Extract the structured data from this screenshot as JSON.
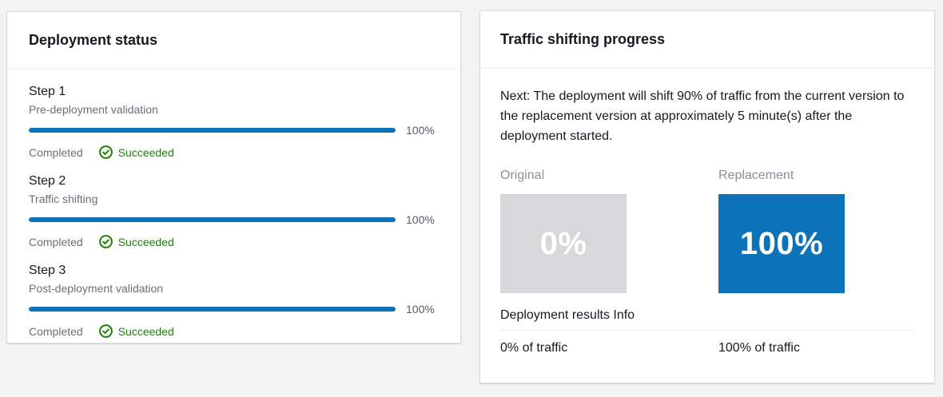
{
  "page": {
    "background": "#f2f3f3"
  },
  "colors": {
    "accent_blue": "#0d73b8",
    "success_green": "#1d8102",
    "secondary_gray": "#687078",
    "label_gray": "#879196",
    "box_gray": "#d5d9d9"
  },
  "deployment_status": {
    "title": "Deployment status",
    "steps": [
      {
        "name": "Step 1",
        "description": "Pre-deployment validation",
        "progress_label": "100%",
        "progress_value": 100,
        "status_label": "Completed",
        "status_icon": "success-check-circle",
        "status": "Succeeded"
      },
      {
        "name": "Step 2",
        "description": "Traffic shifting",
        "progress_label": "100%",
        "progress_value": 100,
        "status_label": "Completed",
        "status_icon": "success-check-circle",
        "status": "Succeeded"
      },
      {
        "name": "Step 3",
        "description": "Post-deployment validation",
        "progress_label": "100%",
        "progress_value": 100,
        "status_label": "Completed",
        "status_icon": "success-check-circle",
        "status": "Succeeded"
      }
    ]
  },
  "traffic_shifting": {
    "title": "Traffic shifting progress",
    "next_message": "Next: The deployment will shift 90% of traffic from the current version to the replacement version at approximately 5 minute(s) after the deployment started.",
    "original": {
      "label": "Original",
      "percent": "0%",
      "traffic": "0% of traffic"
    },
    "replacement": {
      "label": "Replacement",
      "percent": "100%",
      "traffic": "100% of traffic"
    },
    "results_label": "Deployment results",
    "info_label": "Info"
  }
}
